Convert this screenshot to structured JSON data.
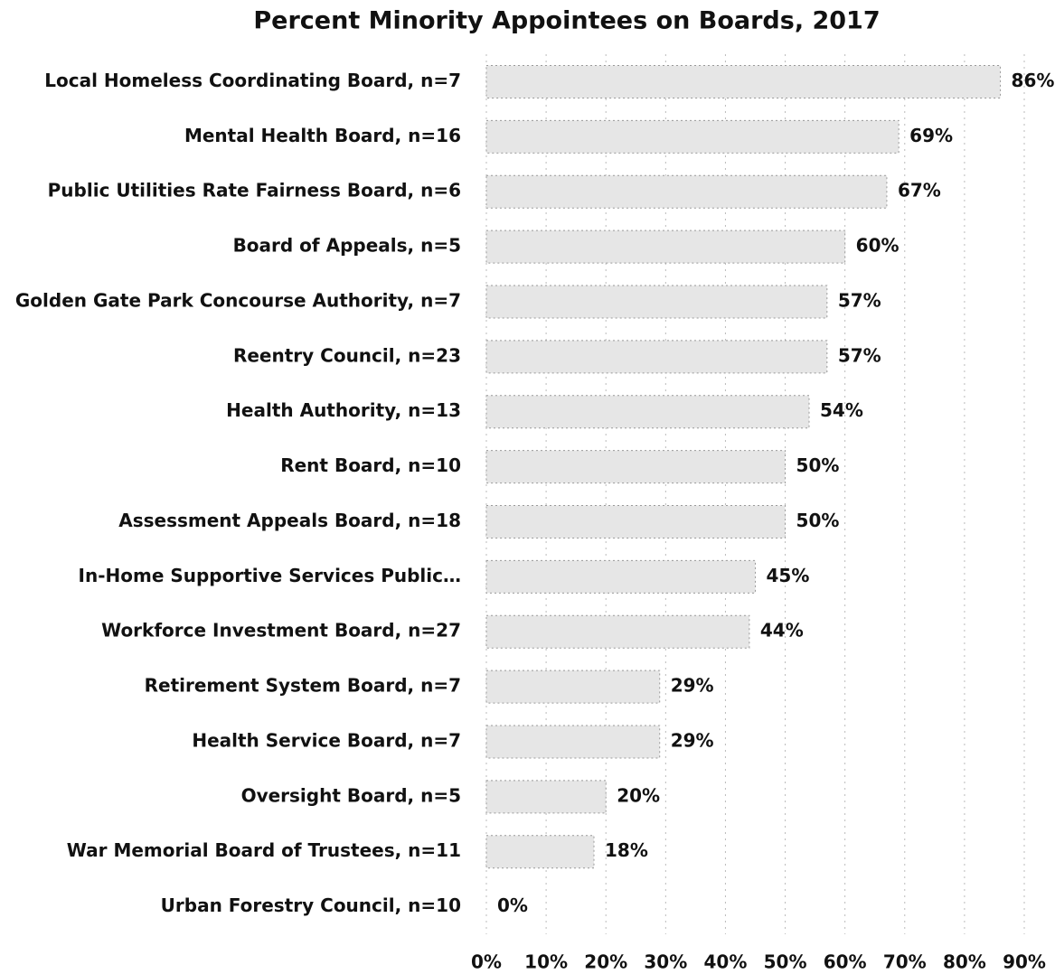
{
  "chart_data": {
    "type": "bar",
    "orientation": "horizontal",
    "title": "Percent Minority Appointees on Boards, 2017",
    "categories": [
      "Local Homeless Coordinating Board, n=7",
      "Mental Health Board, n=16",
      "Public Utilities Rate Fairness Board, n=6",
      "Board of Appeals, n=5",
      "Golden Gate Park Concourse Authority, n=7",
      "Reentry Council, n=23",
      "Health Authority, n=13",
      "Rent Board, n=10",
      "Assessment Appeals Board, n=18",
      "In-Home Supportive Services Public…",
      "Workforce Investment Board, n=27",
      "Retirement System Board, n=7",
      "Health Service Board, n=7",
      "Oversight Board, n=5",
      "War Memorial Board of Trustees, n=11",
      "Urban Forestry Council, n=10"
    ],
    "values": [
      86,
      69,
      67,
      60,
      57,
      57,
      54,
      50,
      50,
      45,
      44,
      29,
      29,
      20,
      18,
      0
    ],
    "value_labels": [
      "86%",
      "69%",
      "67%",
      "60%",
      "57%",
      "57%",
      "54%",
      "50%",
      "50%",
      "45%",
      "44%",
      "29%",
      "29%",
      "20%",
      "18%",
      "0%"
    ],
    "color": "#e6e6e6",
    "xlim": [
      0,
      90
    ],
    "xticks": [
      {
        "value": 0,
        "label": "0%"
      },
      {
        "value": 10,
        "label": "10%"
      },
      {
        "value": 20,
        "label": "20%"
      },
      {
        "value": 30,
        "label": "30%"
      },
      {
        "value": 40,
        "label": "40%"
      },
      {
        "value": 50,
        "label": "50%"
      },
      {
        "value": 60,
        "label": "60%"
      },
      {
        "value": 70,
        "label": "70%"
      },
      {
        "value": 80,
        "label": "80%"
      },
      {
        "value": 90,
        "label": "90%"
      }
    ],
    "grid": true
  }
}
